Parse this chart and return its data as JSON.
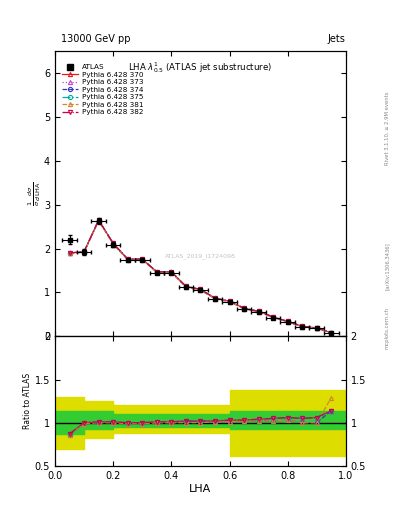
{
  "title_top": "13000 GeV pp",
  "title_right": "Jets",
  "plot_title": "LHA $\\lambda^{1}_{0.5}$ (ATLAS jet substructure)",
  "xlabel": "LHA",
  "ylabel_main": "$\\frac{1}{\\sigma}\\frac{d\\sigma}{d\\,\\mathrm{LHA}}$",
  "ylabel_ratio": "Ratio to ATLAS",
  "watermark": "ATLAS_2019_I1724098",
  "right_label_top": "Rivet 3.1.10, ≥ 2.9M events",
  "right_label_mid": "[arXiv:1306.3436]",
  "right_label_bot": "mcplots.cern.ch",
  "atlas_x": [
    0.05,
    0.1,
    0.15,
    0.2,
    0.25,
    0.3,
    0.35,
    0.4,
    0.45,
    0.5,
    0.55,
    0.6,
    0.65,
    0.7,
    0.75,
    0.8,
    0.85,
    0.9,
    0.95
  ],
  "atlas_y": [
    2.2,
    1.93,
    2.63,
    2.09,
    1.75,
    1.75,
    1.45,
    1.45,
    1.12,
    1.05,
    0.85,
    0.78,
    0.62,
    0.55,
    0.42,
    0.32,
    0.22,
    0.18,
    0.07
  ],
  "atlas_xerr": [
    0.025,
    0.025,
    0.025,
    0.025,
    0.025,
    0.025,
    0.025,
    0.025,
    0.025,
    0.025,
    0.025,
    0.025,
    0.025,
    0.025,
    0.025,
    0.025,
    0.025,
    0.025,
    0.025
  ],
  "atlas_yerr": [
    0.1,
    0.07,
    0.07,
    0.05,
    0.04,
    0.04,
    0.03,
    0.03,
    0.025,
    0.022,
    0.018,
    0.015,
    0.013,
    0.011,
    0.009,
    0.008,
    0.006,
    0.005,
    0.004
  ],
  "mc_x": [
    0.05,
    0.1,
    0.15,
    0.2,
    0.25,
    0.3,
    0.35,
    0.4,
    0.45,
    0.5,
    0.55,
    0.6,
    0.65,
    0.7,
    0.75,
    0.8,
    0.85,
    0.9,
    0.95
  ],
  "py370_y": [
    1.9,
    1.93,
    2.65,
    2.12,
    1.76,
    1.76,
    1.47,
    1.47,
    1.14,
    1.07,
    0.87,
    0.8,
    0.64,
    0.57,
    0.44,
    0.34,
    0.23,
    0.19,
    0.08
  ],
  "py373_y": [
    1.9,
    1.93,
    2.65,
    2.12,
    1.76,
    1.76,
    1.47,
    1.47,
    1.14,
    1.07,
    0.87,
    0.8,
    0.64,
    0.57,
    0.44,
    0.34,
    0.23,
    0.19,
    0.08
  ],
  "py374_y": [
    1.89,
    1.92,
    2.64,
    2.11,
    1.75,
    1.75,
    1.46,
    1.46,
    1.13,
    1.06,
    0.86,
    0.79,
    0.63,
    0.56,
    0.43,
    0.33,
    0.22,
    0.18,
    0.08
  ],
  "py375_y": [
    1.9,
    1.93,
    2.65,
    2.12,
    1.76,
    1.76,
    1.47,
    1.47,
    1.14,
    1.07,
    0.87,
    0.8,
    0.64,
    0.57,
    0.44,
    0.34,
    0.23,
    0.19,
    0.08
  ],
  "py381_y": [
    1.89,
    1.92,
    2.63,
    2.1,
    1.74,
    1.74,
    1.46,
    1.46,
    1.12,
    1.05,
    0.86,
    0.79,
    0.63,
    0.56,
    0.43,
    0.33,
    0.22,
    0.18,
    0.08
  ],
  "py382_y": [
    1.9,
    1.93,
    2.65,
    2.12,
    1.76,
    1.76,
    1.47,
    1.47,
    1.14,
    1.07,
    0.87,
    0.8,
    0.64,
    0.57,
    0.44,
    0.34,
    0.23,
    0.19,
    0.08
  ],
  "ratio370": [
    0.87,
    1.0,
    1.01,
    1.01,
    1.0,
    1.0,
    1.01,
    1.01,
    1.02,
    1.02,
    1.02,
    1.03,
    1.03,
    1.04,
    1.05,
    1.06,
    1.05,
    1.06,
    1.14
  ],
  "ratio373": [
    0.87,
    1.0,
    1.01,
    1.01,
    1.0,
    1.0,
    1.01,
    1.01,
    1.02,
    1.02,
    1.02,
    1.03,
    1.03,
    1.04,
    1.05,
    1.06,
    1.05,
    1.06,
    1.14
  ],
  "ratio374": [
    0.86,
    0.99,
    1.0,
    1.0,
    0.99,
    0.99,
    1.0,
    1.0,
    1.01,
    1.01,
    1.01,
    1.01,
    1.02,
    1.02,
    1.02,
    1.03,
    1.0,
    1.0,
    1.14
  ],
  "ratio375": [
    0.87,
    1.0,
    1.01,
    1.01,
    1.0,
    1.0,
    1.01,
    1.01,
    1.02,
    1.02,
    1.02,
    1.03,
    1.03,
    1.04,
    1.05,
    1.06,
    1.05,
    1.06,
    1.14
  ],
  "ratio381": [
    0.86,
    0.99,
    1.0,
    1.0,
    0.99,
    0.99,
    1.0,
    1.0,
    1.0,
    1.0,
    1.01,
    1.01,
    1.02,
    1.02,
    1.02,
    1.03,
    1.0,
    1.0,
    1.29
  ],
  "ratio382": [
    0.87,
    1.0,
    1.01,
    1.01,
    1.0,
    1.0,
    1.01,
    1.01,
    1.02,
    1.02,
    1.02,
    1.03,
    1.03,
    1.04,
    1.05,
    1.06,
    1.05,
    1.06,
    1.14
  ],
  "band_edges": [
    0.0,
    0.1,
    0.2,
    0.5,
    0.6,
    0.9,
    1.0
  ],
  "green_lo": [
    0.87,
    0.93,
    0.95,
    0.95,
    0.93,
    0.93,
    0.93
  ],
  "green_hi": [
    1.13,
    1.13,
    1.1,
    1.1,
    1.13,
    1.13,
    1.13
  ],
  "yellow_lo": [
    0.7,
    0.82,
    0.88,
    0.88,
    0.62,
    0.62,
    0.62
  ],
  "yellow_hi": [
    1.3,
    1.25,
    1.2,
    1.2,
    1.38,
    1.38,
    1.38
  ],
  "ylim_main": [
    0,
    6.5
  ],
  "ylim_ratio": [
    0.5,
    2.0
  ],
  "xlim": [
    0.0,
    1.0
  ],
  "colors": {
    "py370": "#e8191c",
    "py373": "#cc44cc",
    "py374": "#3333cc",
    "py375": "#00aaaa",
    "py381": "#cc8833",
    "py382": "#cc0044",
    "atlas": "#000000",
    "green_band": "#33cc33",
    "yellow_band": "#dddd00"
  },
  "markers": {
    "py370": "^",
    "py373": "^",
    "py374": "o",
    "py375": "o",
    "py381": "^",
    "py382": "v"
  },
  "linestyles": {
    "py370": "-",
    "py373": ":",
    "py374": "--",
    "py375": "-.",
    "py381": "--",
    "py382": "-."
  },
  "legend_labels": {
    "atlas": "ATLAS",
    "py370": "Pythia 6.428 370",
    "py373": "Pythia 6.428 373",
    "py374": "Pythia 6.428 374",
    "py375": "Pythia 6.428 375",
    "py381": "Pythia 6.428 381",
    "py382": "Pythia 6.428 382"
  }
}
